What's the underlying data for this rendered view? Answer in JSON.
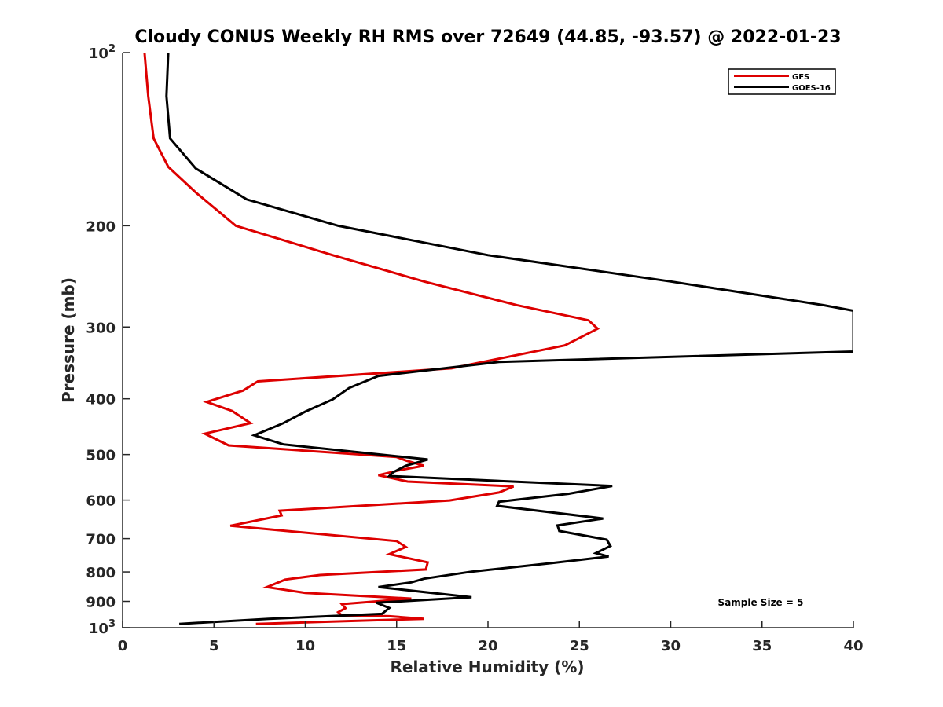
{
  "chart_data": {
    "type": "line",
    "title": "Cloudy CONUS Weekly RH RMS over 72649 (44.85, -93.57) @ 2022-01-23",
    "xlabel": "Relative Humidity (%)",
    "ylabel": "Pressure (mb)",
    "xlim": [
      0,
      40
    ],
    "ylim": [
      100,
      1000
    ],
    "y_scale": "log",
    "y_reversed": true,
    "grid": false,
    "legend_position": "top-right",
    "annotation": "Sample Size = 5",
    "x_ticks": [
      "0",
      "5",
      "10",
      "15",
      "20",
      "25",
      "30",
      "35",
      "40"
    ],
    "y_ticks": [
      {
        "value": 100,
        "base": "10",
        "exp": "2",
        "label": ""
      },
      {
        "value": 200,
        "label": "200"
      },
      {
        "value": 300,
        "label": "300"
      },
      {
        "value": 400,
        "label": "400"
      },
      {
        "value": 500,
        "label": "500"
      },
      {
        "value": 600,
        "label": "600"
      },
      {
        "value": 700,
        "label": "700"
      },
      {
        "value": 800,
        "label": "800"
      },
      {
        "value": 900,
        "label": "900"
      },
      {
        "value": 1000,
        "base": "10",
        "exp": "3",
        "label": ""
      }
    ],
    "series": [
      {
        "name": "GFS",
        "color": "#dd0000",
        "points": [
          [
            1.2,
            100
          ],
          [
            1.4,
            119
          ],
          [
            1.7,
            141
          ],
          [
            2.5,
            158
          ],
          [
            4.0,
            175
          ],
          [
            6.2,
            200
          ],
          [
            11.5,
            225
          ],
          [
            16.5,
            250
          ],
          [
            21.6,
            275
          ],
          [
            25.5,
            292
          ],
          [
            26.0,
            302
          ],
          [
            24.2,
            323
          ],
          [
            18.0,
            354
          ],
          [
            7.4,
            373
          ],
          [
            6.6,
            387
          ],
          [
            4.6,
            405
          ],
          [
            6.0,
            420
          ],
          [
            7.0,
            441
          ],
          [
            4.5,
            460
          ],
          [
            5.8,
            482
          ],
          [
            15.0,
            505
          ],
          [
            15.5,
            512
          ],
          [
            16.5,
            523
          ],
          [
            15.2,
            532
          ],
          [
            14.0,
            543
          ],
          [
            15.6,
            557
          ],
          [
            21.4,
            568
          ],
          [
            20.6,
            582
          ],
          [
            17.9,
            601
          ],
          [
            8.6,
            626
          ],
          [
            8.7,
            638
          ],
          [
            5.9,
            665
          ],
          [
            15.0,
            707
          ],
          [
            15.5,
            724
          ],
          [
            14.6,
            745
          ],
          [
            16.7,
            770
          ],
          [
            16.6,
            792
          ],
          [
            10.8,
            810
          ],
          [
            8.9,
            825
          ],
          [
            7.9,
            850
          ],
          [
            10.0,
            870
          ],
          [
            15.8,
            890
          ],
          [
            12.0,
            910
          ],
          [
            12.2,
            925
          ],
          [
            11.8,
            940
          ],
          [
            12.0,
            952
          ],
          [
            14.6,
            955
          ],
          [
            16.5,
            965
          ],
          [
            7.3,
            985
          ]
        ]
      },
      {
        "name": "GOES-16",
        "color": "#000000",
        "points": [
          [
            2.5,
            100
          ],
          [
            2.4,
            119
          ],
          [
            2.6,
            141
          ],
          [
            4.0,
            159
          ],
          [
            6.8,
            180
          ],
          [
            11.8,
            200
          ],
          [
            20.0,
            225
          ],
          [
            30.0,
            250
          ],
          [
            38.4,
            275
          ],
          [
            40.0,
            281
          ],
          [
            40.0,
            331
          ],
          [
            20.6,
            345
          ],
          [
            14.0,
            365
          ],
          [
            12.4,
            383
          ],
          [
            11.5,
            401
          ],
          [
            10.0,
            421
          ],
          [
            8.8,
            441
          ],
          [
            7.2,
            463
          ],
          [
            8.8,
            480
          ],
          [
            16.7,
            510
          ],
          [
            15.5,
            523
          ],
          [
            14.8,
            537
          ],
          [
            14.6,
            545
          ],
          [
            26.8,
            567
          ],
          [
            24.4,
            585
          ],
          [
            20.6,
            604
          ],
          [
            20.5,
            614
          ],
          [
            26.3,
            646
          ],
          [
            23.8,
            664
          ],
          [
            23.9,
            679
          ],
          [
            26.5,
            703
          ],
          [
            26.7,
            721
          ],
          [
            25.9,
            742
          ],
          [
            26.6,
            752
          ],
          [
            23.5,
            772
          ],
          [
            19.1,
            799
          ],
          [
            16.5,
            822
          ],
          [
            15.8,
            834
          ],
          [
            14.0,
            850
          ],
          [
            19.1,
            885
          ],
          [
            13.9,
            905
          ],
          [
            14.6,
            924
          ],
          [
            14.2,
            946
          ],
          [
            8.0,
            965
          ],
          [
            3.1,
            985
          ]
        ]
      }
    ]
  }
}
